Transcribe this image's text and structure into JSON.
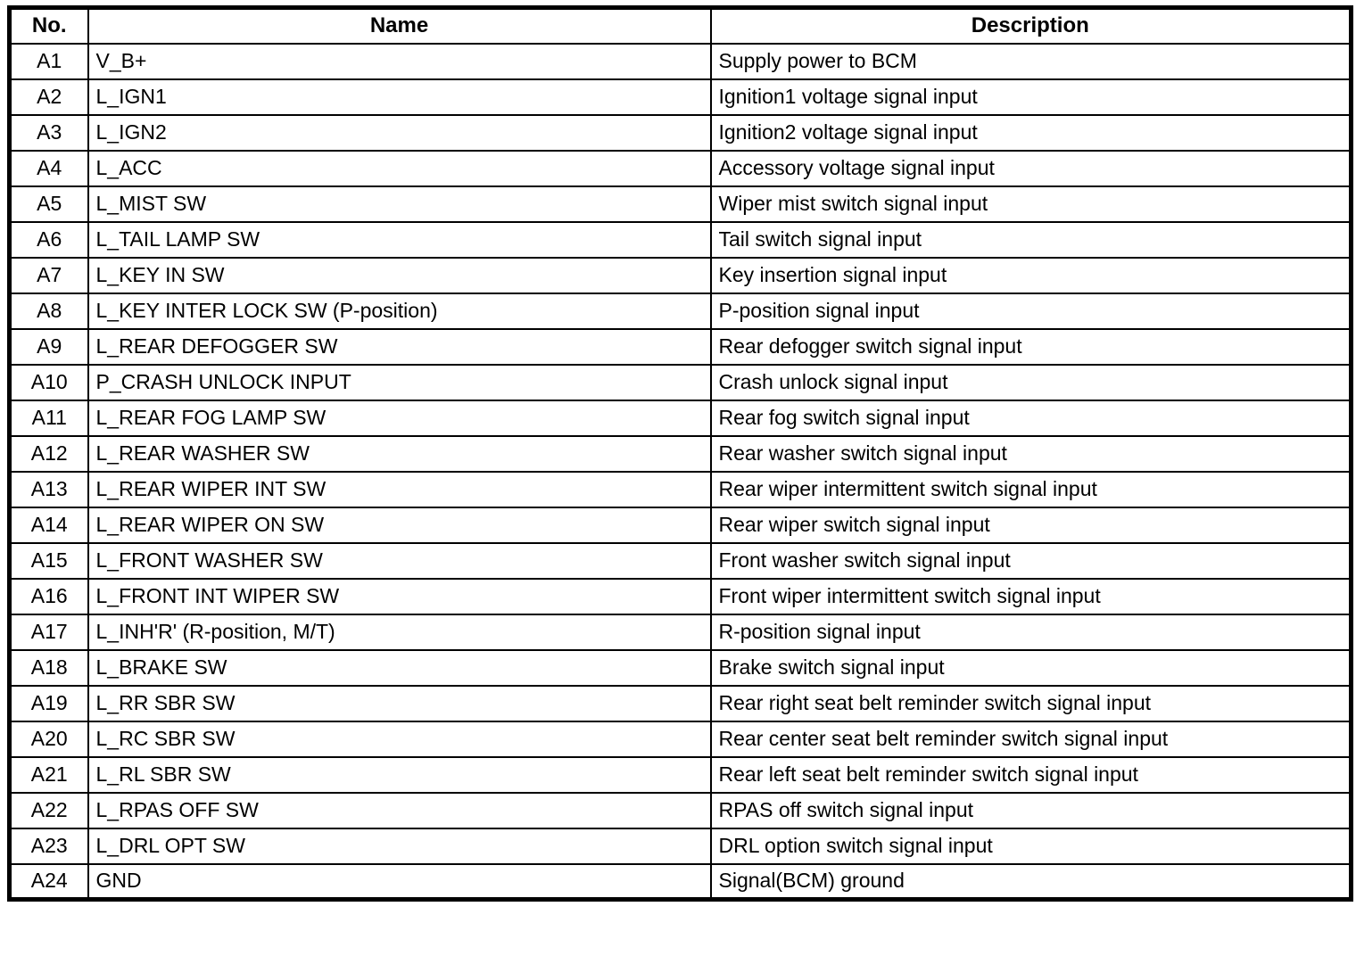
{
  "table": {
    "headers": {
      "no": "No.",
      "name": "Name",
      "description": "Description"
    },
    "rows": [
      {
        "no": "A1",
        "name": "V_B+",
        "description": "Supply power to BCM"
      },
      {
        "no": "A2",
        "name": "L_IGN1",
        "description": "Ignition1 voltage signal input"
      },
      {
        "no": "A3",
        "name": "L_IGN2",
        "description": "Ignition2 voltage signal input"
      },
      {
        "no": "A4",
        "name": "L_ACC",
        "description": "Accessory voltage signal input"
      },
      {
        "no": "A5",
        "name": "L_MIST SW",
        "description": "Wiper mist switch signal input"
      },
      {
        "no": "A6",
        "name": "L_TAIL LAMP SW",
        "description": "Tail switch signal input"
      },
      {
        "no": "A7",
        "name": "L_KEY IN SW",
        "description": "Key insertion signal input"
      },
      {
        "no": "A8",
        "name": "L_KEY INTER LOCK SW (P-position)",
        "description": "P-position signal input"
      },
      {
        "no": "A9",
        "name": "L_REAR DEFOGGER SW",
        "description": "Rear defogger switch signal input"
      },
      {
        "no": "A10",
        "name": "P_CRASH UNLOCK INPUT",
        "description": "Crash unlock signal input"
      },
      {
        "no": "A11",
        "name": "L_REAR FOG LAMP SW",
        "description": "Rear fog switch signal input"
      },
      {
        "no": "A12",
        "name": "L_REAR WASHER SW",
        "description": "Rear washer switch signal input"
      },
      {
        "no": "A13",
        "name": "L_REAR WIPER INT SW",
        "description": "Rear wiper intermittent switch signal input"
      },
      {
        "no": "A14",
        "name": "L_REAR WIPER ON SW",
        "description": "Rear wiper switch signal input"
      },
      {
        "no": "A15",
        "name": "L_FRONT WASHER SW",
        "description": "Front washer switch signal input"
      },
      {
        "no": "A16",
        "name": "L_FRONT INT WIPER SW",
        "description": "Front wiper intermittent switch signal input"
      },
      {
        "no": "A17",
        "name": "L_INH'R' (R-position, M/T)",
        "description": "R-position signal input"
      },
      {
        "no": "A18",
        "name": "L_BRAKE SW",
        "description": "Brake switch signal input"
      },
      {
        "no": "A19",
        "name": "L_RR SBR SW",
        "description": "Rear right seat belt reminder switch signal input"
      },
      {
        "no": "A20",
        "name": "L_RC SBR SW",
        "description": "Rear center seat belt reminder switch signal input"
      },
      {
        "no": "A21",
        "name": "L_RL SBR SW",
        "description": "Rear left seat belt reminder switch signal input"
      },
      {
        "no": "A22",
        "name": "L_RPAS OFF SW",
        "description": "RPAS off switch signal input"
      },
      {
        "no": "A23",
        "name": "L_DRL OPT SW",
        "description": "DRL option switch signal input"
      },
      {
        "no": "A24",
        "name": "GND",
        "description": "Signal(BCM) ground"
      }
    ]
  }
}
